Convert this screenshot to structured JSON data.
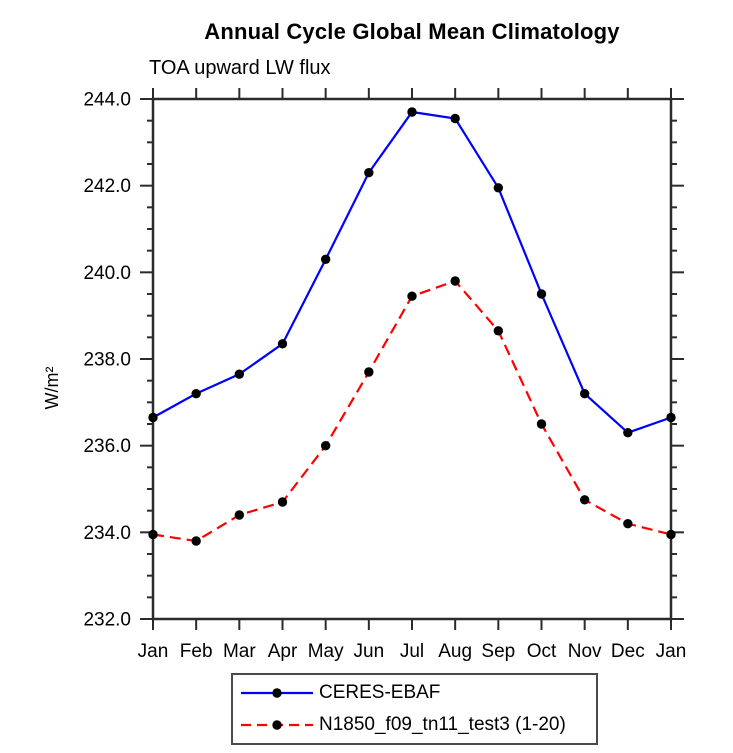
{
  "chart_data": {
    "type": "line",
    "title": "Annual Cycle Global Mean Climatology",
    "subtitle": "TOA upward LW flux",
    "ylabel": "W/m²",
    "xlabel": "",
    "ylim": [
      232.0,
      244.0
    ],
    "y_major_step": 2.0,
    "y_minor_step": 0.5,
    "y_tick_labels": [
      "232.0",
      "234.0",
      "236.0",
      "238.0",
      "240.0",
      "242.0",
      "244.0"
    ],
    "categories": [
      "Jan",
      "Feb",
      "Mar",
      "Apr",
      "May",
      "Jun",
      "Jul",
      "Aug",
      "Sep",
      "Oct",
      "Nov",
      "Dec",
      "Jan"
    ],
    "series": [
      {
        "name": "CERES-EBAF",
        "color": "#0000ff",
        "style": "solid",
        "marker_color": "#000000",
        "values": [
          236.65,
          237.2,
          237.65,
          238.35,
          240.3,
          242.3,
          243.7,
          243.55,
          241.95,
          239.5,
          237.2,
          236.3,
          236.65
        ]
      },
      {
        "name": "N1850_f09_tn11_test3 (1-20)",
        "color": "#ff0000",
        "style": "dashed",
        "marker_color": "#000000",
        "values": [
          233.95,
          233.8,
          234.4,
          234.7,
          236.0,
          237.7,
          239.45,
          239.8,
          238.65,
          236.5,
          234.75,
          234.2,
          233.95
        ]
      }
    ],
    "legend_position": "bottom-center",
    "grid": false
  }
}
